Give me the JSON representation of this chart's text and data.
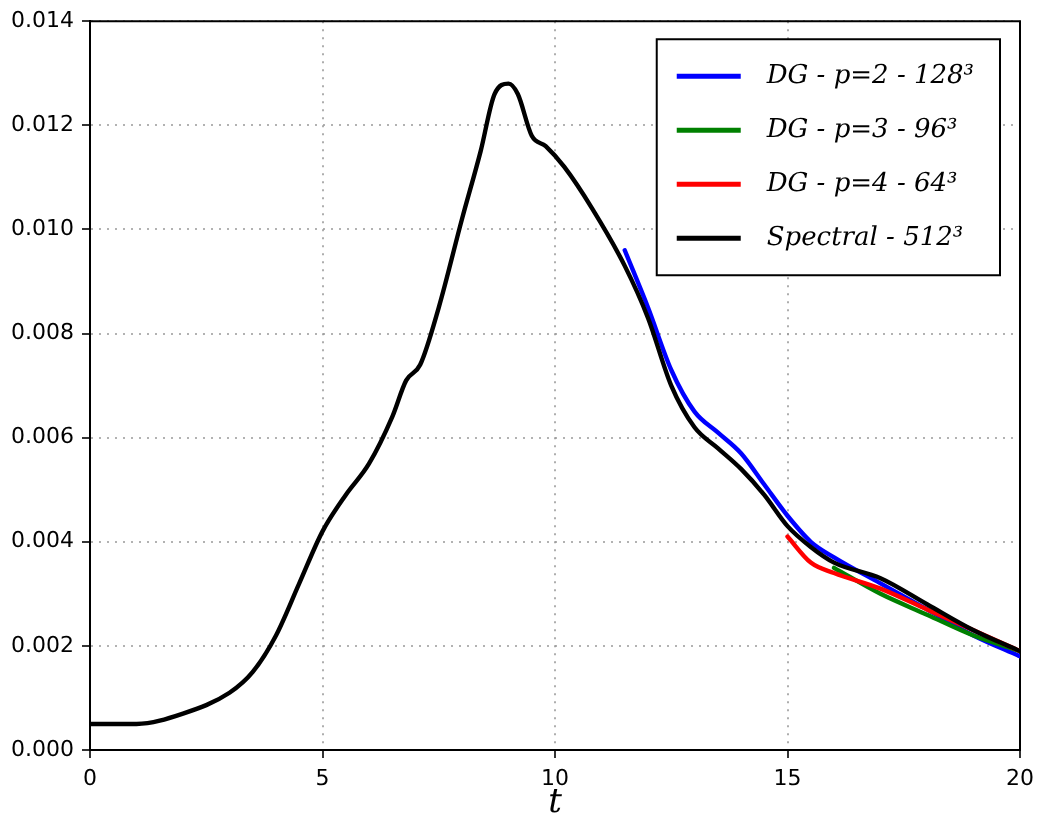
{
  "chart_data": {
    "type": "line",
    "xlabel": "t",
    "legend": "top right",
    "grid": true,
    "line_style": "solid",
    "marker": "none",
    "xlim": [
      0,
      20
    ],
    "xticks": [
      0,
      5,
      10,
      15,
      20
    ],
    "ylim": [
      0,
      0.014
    ],
    "yticks": [
      {
        "value": 0,
        "label": "0.000"
      },
      {
        "value": 0.002,
        "label": "0.002"
      },
      {
        "value": 0.004,
        "label": "0.004"
      },
      {
        "value": 0.006,
        "label": "0.006"
      },
      {
        "value": 0.008,
        "label": "0.008"
      },
      {
        "value": 0.01,
        "label": "0.010"
      },
      {
        "value": 0.012,
        "label": "0.012"
      },
      {
        "value": 0.014,
        "label": "0.014"
      }
    ],
    "x": [
      0,
      1,
      2,
      3,
      3.5,
      4,
      4.5,
      5,
      5.5,
      6,
      6.5,
      6.8,
      7.1,
      7.5,
      8,
      8.4,
      8.7,
      9,
      9.2,
      9.5,
      9.8,
      10.2,
      10.8,
      11.5,
      12,
      12.5,
      13,
      13.5,
      14,
      14.5,
      15,
      15.5,
      16,
      17,
      18,
      19,
      20
    ],
    "series": [
      {
        "name": "DG - p=2 - 128³",
        "color": "#0000ff",
        "x": [
          11.5,
          12,
          12.5,
          13,
          13.5,
          14,
          14.5,
          15,
          15.5,
          16,
          17,
          18,
          19,
          20
        ],
        "values": [
          0.0096,
          0.0085,
          0.0073,
          0.0065,
          0.0061,
          0.0057,
          0.0051,
          0.0045,
          0.004,
          0.0037,
          0.0032,
          0.0027,
          0.0022,
          0.0018
        ]
      },
      {
        "name": "DG - p=3 - 96³",
        "color": "#008000",
        "x": [
          16,
          17,
          18,
          19,
          20
        ],
        "values": [
          0.0035,
          0.003,
          0.0026,
          0.0022,
          0.0019
        ]
      },
      {
        "name": "DG - p=4 - 64³",
        "color": "#ff0000",
        "x": [
          15,
          15.5,
          16,
          17,
          18,
          19,
          20
        ],
        "values": [
          0.0041,
          0.0036,
          0.0034,
          0.0031,
          0.0027,
          0.0023,
          0.0019
        ]
      },
      {
        "name": "Spectral - 512³",
        "color": "#000000",
        "values": [
          0.0005,
          0.0005,
          0.0007,
          0.0011,
          0.0015,
          0.0022,
          0.0032,
          0.0042,
          0.0049,
          0.0055,
          0.0064,
          0.0071,
          0.0074,
          0.0085,
          0.0102,
          0.0115,
          0.0126,
          0.0128,
          0.0126,
          0.0118,
          0.0116,
          0.0112,
          0.0104,
          0.0093,
          0.0083,
          0.007,
          0.0062,
          0.0058,
          0.0054,
          0.0049,
          0.0043,
          0.0039,
          0.0036,
          0.0033,
          0.0028,
          0.0023,
          0.0019
        ]
      }
    ]
  }
}
